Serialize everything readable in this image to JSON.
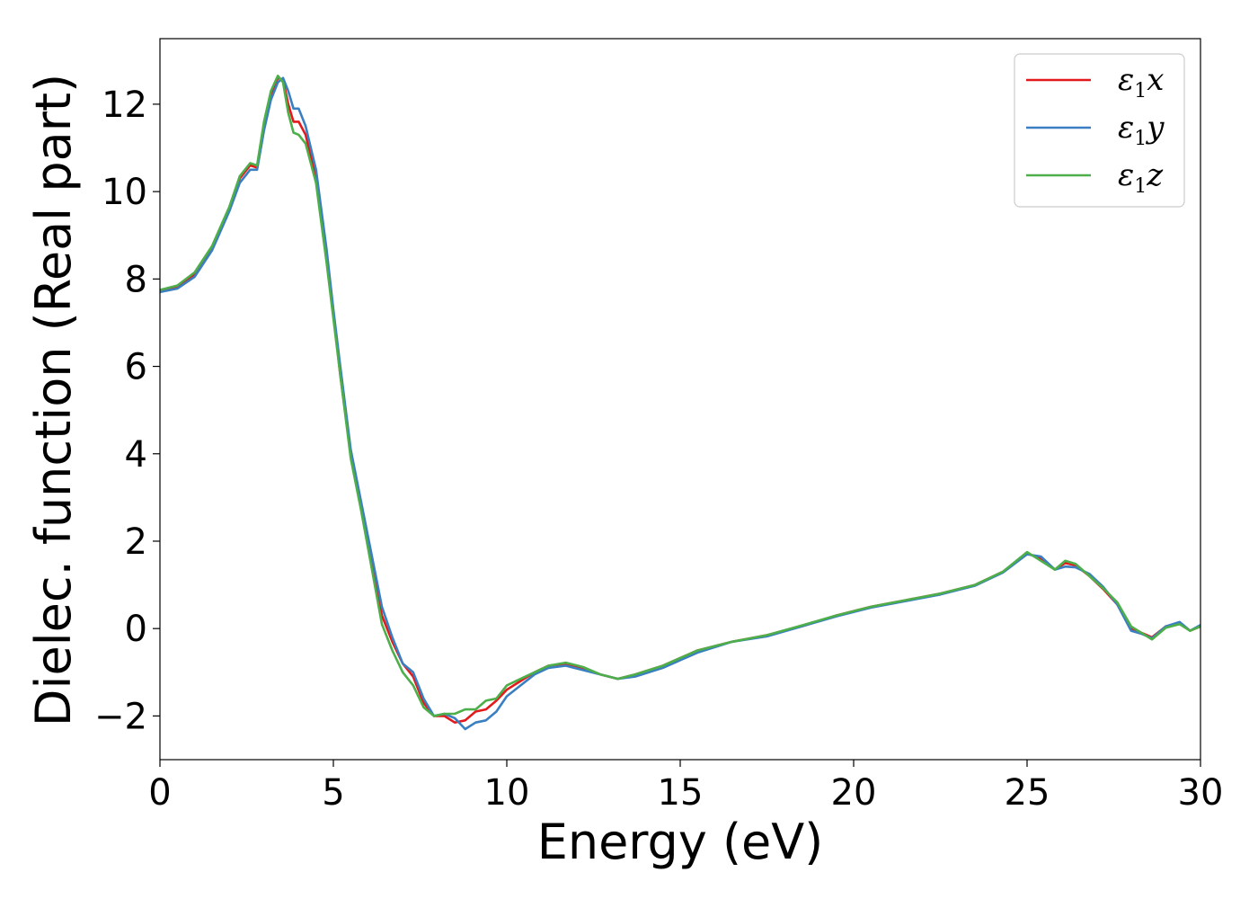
{
  "chart_data": {
    "type": "line",
    "title": "",
    "xlabel": "Energy (eV)",
    "ylabel": "Dielec. function (Real part)",
    "xlim": [
      0,
      30
    ],
    "ylim": [
      -3,
      13.5
    ],
    "xticks": [
      0,
      5,
      10,
      15,
      20,
      25,
      30
    ],
    "yticks": [
      -2,
      0,
      2,
      4,
      6,
      8,
      10,
      12
    ],
    "xtick_labels": [
      "0",
      "5",
      "10",
      "15",
      "20",
      "25",
      "30"
    ],
    "ytick_labels": [
      "−2",
      "0",
      "2",
      "4",
      "6",
      "8",
      "10",
      "12"
    ],
    "grid": false,
    "legend_position": "top-right",
    "series": [
      {
        "name": "ε1x",
        "legend_main": "ε",
        "legend_sub": "1",
        "legend_tail": "x",
        "color": "#e31a1c",
        "x": [
          0,
          0.5,
          1.0,
          1.5,
          2.0,
          2.3,
          2.6,
          2.8,
          3.0,
          3.2,
          3.4,
          3.55,
          3.7,
          3.85,
          4.0,
          4.2,
          4.5,
          4.8,
          5.0,
          5.2,
          5.5,
          5.8,
          6.1,
          6.4,
          6.7,
          7.0,
          7.3,
          7.6,
          7.9,
          8.2,
          8.5,
          8.8,
          9.1,
          9.4,
          9.7,
          10.0,
          10.4,
          10.8,
          11.2,
          11.7,
          12.2,
          12.7,
          13.2,
          13.7,
          14.5,
          15.5,
          16.5,
          17.5,
          18.5,
          19.5,
          20.5,
          21.5,
          22.5,
          23.5,
          24.3,
          24.8,
          25.0,
          25.4,
          25.8,
          26.1,
          26.4,
          26.8,
          27.2,
          27.6,
          28.0,
          28.3,
          28.6,
          29.0,
          29.4,
          29.7,
          30.0
        ],
        "y": [
          7.72,
          7.8,
          8.1,
          8.7,
          9.6,
          10.3,
          10.6,
          10.55,
          11.5,
          12.2,
          12.6,
          12.55,
          12.0,
          11.6,
          11.6,
          11.3,
          10.3,
          8.5,
          7.2,
          5.8,
          4.0,
          2.8,
          1.5,
          0.3,
          -0.3,
          -0.8,
          -1.1,
          -1.7,
          -2.0,
          -2.0,
          -2.15,
          -2.1,
          -1.9,
          -1.85,
          -1.65,
          -1.4,
          -1.2,
          -1.0,
          -0.85,
          -0.8,
          -0.9,
          -1.05,
          -1.15,
          -1.05,
          -0.85,
          -0.5,
          -0.3,
          -0.15,
          0.05,
          0.3,
          0.5,
          0.65,
          0.8,
          1.0,
          1.3,
          1.6,
          1.72,
          1.6,
          1.35,
          1.5,
          1.45,
          1.2,
          0.9,
          0.55,
          0.0,
          -0.1,
          -0.2,
          0.05,
          0.12,
          -0.05,
          0.05
        ]
      },
      {
        "name": "ε1y",
        "legend_main": "ε",
        "legend_sub": "1",
        "legend_tail": "y",
        "color": "#3a7fc1",
        "x": [
          0,
          0.5,
          1.0,
          1.5,
          2.0,
          2.3,
          2.6,
          2.8,
          3.0,
          3.2,
          3.4,
          3.55,
          3.7,
          3.85,
          4.0,
          4.2,
          4.5,
          4.8,
          5.0,
          5.2,
          5.5,
          5.8,
          6.1,
          6.4,
          6.7,
          7.0,
          7.3,
          7.6,
          7.9,
          8.2,
          8.5,
          8.8,
          9.1,
          9.4,
          9.7,
          10.0,
          10.4,
          10.8,
          11.2,
          11.7,
          12.2,
          12.7,
          13.2,
          13.7,
          14.5,
          15.5,
          16.5,
          17.5,
          18.5,
          19.5,
          20.5,
          21.5,
          22.5,
          23.5,
          24.3,
          24.8,
          25.0,
          25.4,
          25.8,
          26.1,
          26.4,
          26.8,
          27.2,
          27.6,
          28.0,
          28.3,
          28.6,
          29.0,
          29.4,
          29.7,
          30.0
        ],
        "y": [
          7.7,
          7.78,
          8.05,
          8.65,
          9.55,
          10.2,
          10.5,
          10.5,
          11.4,
          12.1,
          12.5,
          12.6,
          12.3,
          11.9,
          11.9,
          11.5,
          10.5,
          8.7,
          7.3,
          6.0,
          4.1,
          2.9,
          1.7,
          0.5,
          -0.2,
          -0.8,
          -1.0,
          -1.6,
          -2.0,
          -1.95,
          -2.05,
          -2.3,
          -2.15,
          -2.1,
          -1.9,
          -1.55,
          -1.3,
          -1.05,
          -0.9,
          -0.85,
          -0.95,
          -1.05,
          -1.15,
          -1.1,
          -0.9,
          -0.55,
          -0.3,
          -0.18,
          0.05,
          0.28,
          0.48,
          0.63,
          0.78,
          0.98,
          1.28,
          1.58,
          1.7,
          1.65,
          1.35,
          1.42,
          1.4,
          1.25,
          0.95,
          0.55,
          -0.05,
          -0.12,
          -0.22,
          0.05,
          0.15,
          -0.05,
          0.08
        ]
      },
      {
        "name": "ε1z",
        "legend_main": "ε",
        "legend_sub": "1",
        "legend_tail": "z",
        "color": "#4daf4a",
        "x": [
          0,
          0.5,
          1.0,
          1.5,
          2.0,
          2.3,
          2.6,
          2.8,
          3.0,
          3.2,
          3.4,
          3.55,
          3.7,
          3.85,
          4.0,
          4.2,
          4.5,
          4.8,
          5.0,
          5.2,
          5.5,
          5.8,
          6.1,
          6.4,
          6.7,
          7.0,
          7.3,
          7.6,
          7.9,
          8.2,
          8.5,
          8.8,
          9.1,
          9.4,
          9.7,
          10.0,
          10.4,
          10.8,
          11.2,
          11.7,
          12.2,
          12.7,
          13.2,
          13.7,
          14.5,
          15.5,
          16.5,
          17.5,
          18.5,
          19.5,
          20.5,
          21.5,
          22.5,
          23.5,
          24.3,
          24.8,
          25.0,
          25.4,
          25.8,
          26.1,
          26.4,
          26.8,
          27.2,
          27.6,
          28.0,
          28.3,
          28.6,
          29.0,
          29.4,
          29.7,
          30.0
        ],
        "y": [
          7.75,
          7.85,
          8.15,
          8.75,
          9.65,
          10.35,
          10.65,
          10.6,
          11.6,
          12.3,
          12.65,
          12.5,
          11.8,
          11.35,
          11.3,
          11.1,
          10.2,
          8.4,
          7.1,
          5.8,
          3.9,
          2.7,
          1.4,
          0.1,
          -0.5,
          -1.0,
          -1.3,
          -1.8,
          -2.0,
          -1.95,
          -1.95,
          -1.85,
          -1.85,
          -1.65,
          -1.6,
          -1.3,
          -1.15,
          -1.0,
          -0.85,
          -0.78,
          -0.88,
          -1.05,
          -1.15,
          -1.05,
          -0.85,
          -0.5,
          -0.3,
          -0.15,
          0.07,
          0.3,
          0.5,
          0.65,
          0.8,
          1.0,
          1.3,
          1.62,
          1.75,
          1.55,
          1.35,
          1.55,
          1.48,
          1.2,
          0.92,
          0.6,
          0.05,
          -0.1,
          -0.25,
          0.02,
          0.1,
          -0.05,
          0.05
        ]
      }
    ]
  }
}
